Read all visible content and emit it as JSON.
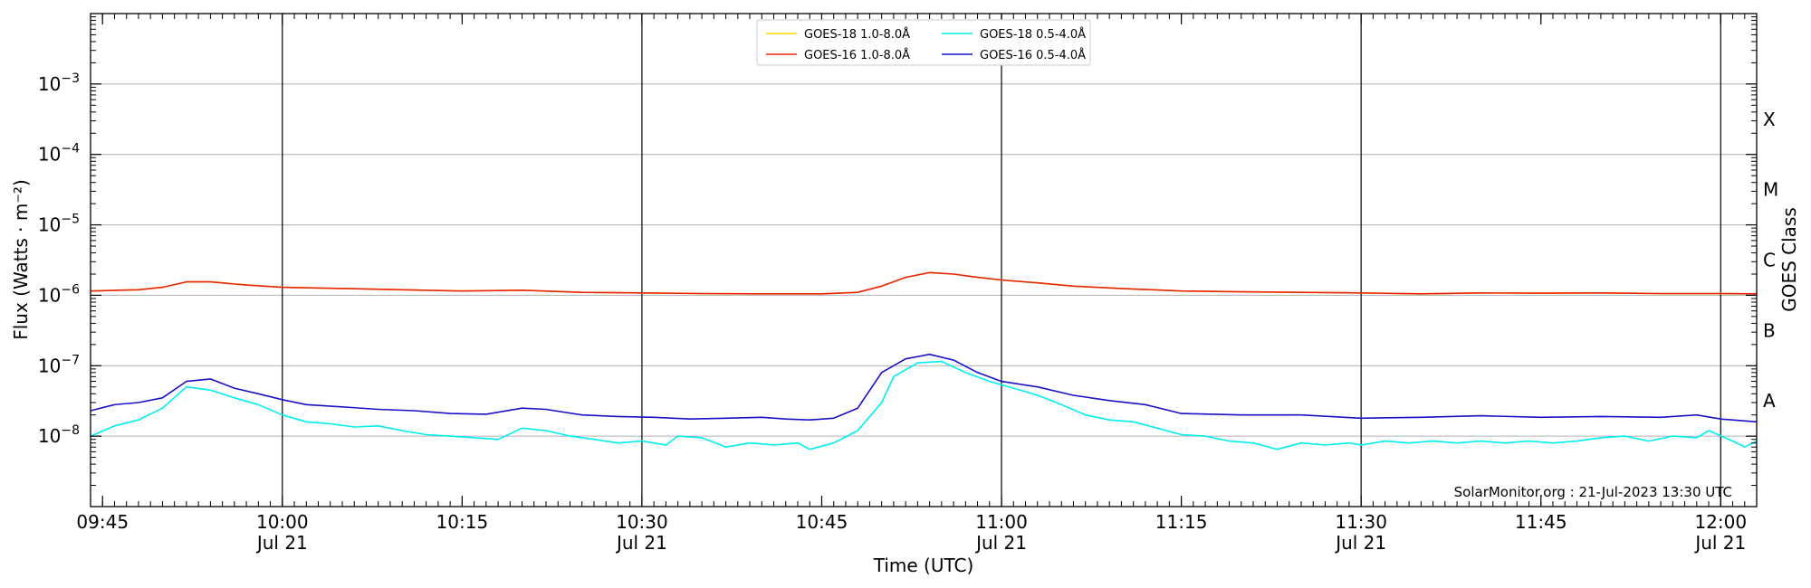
{
  "chart_data": {
    "type": "line",
    "title": "",
    "xlabel": "Time (UTC)",
    "ylabel": "Flux (Watts · m⁻²)",
    "y_scale": "log",
    "ylim": [
      1e-09,
      0.01
    ],
    "xlim": [
      "2023-07-21T09:44",
      "2023-07-21T12:03"
    ],
    "y_ticks": [
      {
        "value": 1e-08,
        "base": "10",
        "exp": "−8"
      },
      {
        "value": 1e-07,
        "base": "10",
        "exp": "−7"
      },
      {
        "value": 1e-06,
        "base": "10",
        "exp": "−6"
      },
      {
        "value": 1e-05,
        "base": "10",
        "exp": "−5"
      },
      {
        "value": 0.0001,
        "base": "10",
        "exp": "−4"
      },
      {
        "value": 0.001,
        "base": "10",
        "exp": "−3"
      }
    ],
    "x_ticks": [
      {
        "time": "2023-07-21T09:45",
        "label": "09:45",
        "sub": ""
      },
      {
        "time": "2023-07-21T10:00",
        "label": "10:00",
        "sub": "Jul 21"
      },
      {
        "time": "2023-07-21T10:15",
        "label": "10:15",
        "sub": ""
      },
      {
        "time": "2023-07-21T10:30",
        "label": "10:30",
        "sub": "Jul 21"
      },
      {
        "time": "2023-07-21T10:45",
        "label": "10:45",
        "sub": ""
      },
      {
        "time": "2023-07-21T11:00",
        "label": "11:00",
        "sub": "Jul 21"
      },
      {
        "time": "2023-07-21T11:15",
        "label": "11:15",
        "sub": ""
      },
      {
        "time": "2023-07-21T11:30",
        "label": "11:30",
        "sub": "Jul 21"
      },
      {
        "time": "2023-07-21T11:45",
        "label": "11:45",
        "sub": ""
      },
      {
        "time": "2023-07-21T12:00",
        "label": "12:00",
        "sub": "Jul 21"
      }
    ],
    "vlines": [
      "2023-07-21T10:00",
      "2023-07-21T10:30",
      "2023-07-21T11:00",
      "2023-07-21T11:30",
      "2023-07-21T12:00"
    ],
    "grid": "horizontal",
    "right_axis": {
      "label": "GOES Class",
      "classes": [
        {
          "name": "A",
          "value": 1e-08
        },
        {
          "name": "B",
          "value": 1e-07
        },
        {
          "name": "C",
          "value": 1e-06
        },
        {
          "name": "M",
          "value": 1e-05
        },
        {
          "name": "X",
          "value": 0.0001
        }
      ]
    },
    "legend": {
      "placement": "top-center",
      "entries": [
        {
          "name": "GOES-18 1.0-8.0Å",
          "color": "#ffd700"
        },
        {
          "name": "GOES-16 1.0-8.0Å",
          "color": "#e8250c"
        },
        {
          "name": "GOES-18 0.5-4.0Å",
          "color": "#00eeee"
        },
        {
          "name": "GOES-16 0.5-4.0Å",
          "color": "#1a10c8"
        }
      ]
    },
    "annotation": "SolarMonitor.org : 21-Jul-2023 13:30 UTC",
    "series": [
      {
        "name": "GOES-18 1.0-8.0Å",
        "color": "#ffd700",
        "points": [
          [
            "2023-07-21T09:44",
            1.15e-06
          ],
          [
            "2023-07-21T09:48",
            1.2e-06
          ],
          [
            "2023-07-21T09:50",
            1.3e-06
          ],
          [
            "2023-07-21T09:52",
            1.55e-06
          ],
          [
            "2023-07-21T09:54",
            1.55e-06
          ],
          [
            "2023-07-21T09:57",
            1.4e-06
          ],
          [
            "2023-07-21T10:00",
            1.3e-06
          ],
          [
            "2023-07-21T10:05",
            1.25e-06
          ],
          [
            "2023-07-21T10:10",
            1.2e-06
          ],
          [
            "2023-07-21T10:15",
            1.15e-06
          ],
          [
            "2023-07-21T10:20",
            1.18e-06
          ],
          [
            "2023-07-21T10:25",
            1.1e-06
          ],
          [
            "2023-07-21T10:30",
            1.08e-06
          ],
          [
            "2023-07-21T10:35",
            1.06e-06
          ],
          [
            "2023-07-21T10:40",
            1.05e-06
          ],
          [
            "2023-07-21T10:45",
            1.05e-06
          ],
          [
            "2023-07-21T10:48",
            1.1e-06
          ],
          [
            "2023-07-21T10:50",
            1.35e-06
          ],
          [
            "2023-07-21T10:52",
            1.8e-06
          ],
          [
            "2023-07-21T10:54",
            2.1e-06
          ],
          [
            "2023-07-21T10:56",
            2e-06
          ],
          [
            "2023-07-21T10:58",
            1.8e-06
          ],
          [
            "2023-07-21T11:00",
            1.65e-06
          ],
          [
            "2023-07-21T11:03",
            1.5e-06
          ],
          [
            "2023-07-21T11:06",
            1.35e-06
          ],
          [
            "2023-07-21T11:10",
            1.25e-06
          ],
          [
            "2023-07-21T11:15",
            1.15e-06
          ],
          [
            "2023-07-21T11:20",
            1.12e-06
          ],
          [
            "2023-07-21T11:25",
            1.1e-06
          ],
          [
            "2023-07-21T11:30",
            1.08e-06
          ],
          [
            "2023-07-21T11:35",
            1.05e-06
          ],
          [
            "2023-07-21T11:40",
            1.08e-06
          ],
          [
            "2023-07-21T11:45",
            1.07e-06
          ],
          [
            "2023-07-21T11:50",
            1.08e-06
          ],
          [
            "2023-07-21T11:55",
            1.06e-06
          ],
          [
            "2023-07-21T12:00",
            1.06e-06
          ],
          [
            "2023-07-21T12:03",
            1.05e-06
          ]
        ]
      },
      {
        "name": "GOES-16 1.0-8.0Å",
        "color": "#e8250c",
        "points": [
          [
            "2023-07-21T09:44",
            1.15e-06
          ],
          [
            "2023-07-21T09:48",
            1.2e-06
          ],
          [
            "2023-07-21T09:50",
            1.3e-06
          ],
          [
            "2023-07-21T09:52",
            1.55e-06
          ],
          [
            "2023-07-21T09:54",
            1.55e-06
          ],
          [
            "2023-07-21T09:57",
            1.4e-06
          ],
          [
            "2023-07-21T10:00",
            1.3e-06
          ],
          [
            "2023-07-21T10:05",
            1.25e-06
          ],
          [
            "2023-07-21T10:10",
            1.2e-06
          ],
          [
            "2023-07-21T10:15",
            1.15e-06
          ],
          [
            "2023-07-21T10:20",
            1.18e-06
          ],
          [
            "2023-07-21T10:25",
            1.1e-06
          ],
          [
            "2023-07-21T10:30",
            1.08e-06
          ],
          [
            "2023-07-21T10:35",
            1.06e-06
          ],
          [
            "2023-07-21T10:40",
            1.05e-06
          ],
          [
            "2023-07-21T10:45",
            1.05e-06
          ],
          [
            "2023-07-21T10:48",
            1.1e-06
          ],
          [
            "2023-07-21T10:50",
            1.35e-06
          ],
          [
            "2023-07-21T10:52",
            1.8e-06
          ],
          [
            "2023-07-21T10:54",
            2.1e-06
          ],
          [
            "2023-07-21T10:56",
            2e-06
          ],
          [
            "2023-07-21T10:58",
            1.8e-06
          ],
          [
            "2023-07-21T11:00",
            1.65e-06
          ],
          [
            "2023-07-21T11:03",
            1.5e-06
          ],
          [
            "2023-07-21T11:06",
            1.35e-06
          ],
          [
            "2023-07-21T11:10",
            1.25e-06
          ],
          [
            "2023-07-21T11:15",
            1.15e-06
          ],
          [
            "2023-07-21T11:20",
            1.12e-06
          ],
          [
            "2023-07-21T11:25",
            1.1e-06
          ],
          [
            "2023-07-21T11:30",
            1.08e-06
          ],
          [
            "2023-07-21T11:35",
            1.05e-06
          ],
          [
            "2023-07-21T11:40",
            1.08e-06
          ],
          [
            "2023-07-21T11:45",
            1.07e-06
          ],
          [
            "2023-07-21T11:50",
            1.08e-06
          ],
          [
            "2023-07-21T11:55",
            1.06e-06
          ],
          [
            "2023-07-21T12:00",
            1.06e-06
          ],
          [
            "2023-07-21T12:03",
            1.05e-06
          ]
        ]
      },
      {
        "name": "GOES-18 0.5-4.0Å",
        "color": "#00eeee",
        "points": [
          [
            "2023-07-21T09:44",
            1e-08
          ],
          [
            "2023-07-21T09:46",
            1.4e-08
          ],
          [
            "2023-07-21T09:48",
            1.7e-08
          ],
          [
            "2023-07-21T09:50",
            2.5e-08
          ],
          [
            "2023-07-21T09:52",
            5e-08
          ],
          [
            "2023-07-21T09:54",
            4.5e-08
          ],
          [
            "2023-07-21T09:56",
            3.5e-08
          ],
          [
            "2023-07-21T09:58",
            2.8e-08
          ],
          [
            "2023-07-21T10:00",
            2e-08
          ],
          [
            "2023-07-21T10:02",
            1.6e-08
          ],
          [
            "2023-07-21T10:04",
            1.5e-08
          ],
          [
            "2023-07-21T10:06",
            1.35e-08
          ],
          [
            "2023-07-21T10:08",
            1.4e-08
          ],
          [
            "2023-07-21T10:10",
            1.2e-08
          ],
          [
            "2023-07-21T10:12",
            1.05e-08
          ],
          [
            "2023-07-21T10:14",
            1e-08
          ],
          [
            "2023-07-21T10:16",
            9.5e-09
          ],
          [
            "2023-07-21T10:18",
            9e-09
          ],
          [
            "2023-07-21T10:20",
            1.3e-08
          ],
          [
            "2023-07-21T10:22",
            1.2e-08
          ],
          [
            "2023-07-21T10:24",
            1e-08
          ],
          [
            "2023-07-21T10:26",
            9e-09
          ],
          [
            "2023-07-21T10:28",
            8e-09
          ],
          [
            "2023-07-21T10:30",
            8.5e-09
          ],
          [
            "2023-07-21T10:32",
            7.5e-09
          ],
          [
            "2023-07-21T10:33",
            1e-08
          ],
          [
            "2023-07-21T10:35",
            9.5e-09
          ],
          [
            "2023-07-21T10:37",
            7e-09
          ],
          [
            "2023-07-21T10:39",
            8e-09
          ],
          [
            "2023-07-21T10:41",
            7.5e-09
          ],
          [
            "2023-07-21T10:43",
            8e-09
          ],
          [
            "2023-07-21T10:44",
            6.5e-09
          ],
          [
            "2023-07-21T10:46",
            8e-09
          ],
          [
            "2023-07-21T10:48",
            1.2e-08
          ],
          [
            "2023-07-21T10:50",
            3e-08
          ],
          [
            "2023-07-21T10:51",
            7e-08
          ],
          [
            "2023-07-21T10:53",
            1.1e-07
          ],
          [
            "2023-07-21T10:55",
            1.15e-07
          ],
          [
            "2023-07-21T10:57",
            8e-08
          ],
          [
            "2023-07-21T10:59",
            6e-08
          ],
          [
            "2023-07-21T11:01",
            4.8e-08
          ],
          [
            "2023-07-21T11:03",
            3.8e-08
          ],
          [
            "2023-07-21T11:05",
            2.8e-08
          ],
          [
            "2023-07-21T11:07",
            2e-08
          ],
          [
            "2023-07-21T11:09",
            1.7e-08
          ],
          [
            "2023-07-21T11:11",
            1.6e-08
          ],
          [
            "2023-07-21T11:13",
            1.3e-08
          ],
          [
            "2023-07-21T11:15",
            1.05e-08
          ],
          [
            "2023-07-21T11:17",
            1e-08
          ],
          [
            "2023-07-21T11:19",
            8.5e-09
          ],
          [
            "2023-07-21T11:21",
            8e-09
          ],
          [
            "2023-07-21T11:23",
            6.5e-09
          ],
          [
            "2023-07-21T11:25",
            8e-09
          ],
          [
            "2023-07-21T11:27",
            7.5e-09
          ],
          [
            "2023-07-21T11:29",
            8e-09
          ],
          [
            "2023-07-21T11:30",
            7.5e-09
          ],
          [
            "2023-07-21T11:32",
            8.5e-09
          ],
          [
            "2023-07-21T11:34",
            8e-09
          ],
          [
            "2023-07-21T11:36",
            8.5e-09
          ],
          [
            "2023-07-21T11:38",
            8e-09
          ],
          [
            "2023-07-21T11:40",
            8.5e-09
          ],
          [
            "2023-07-21T11:42",
            8e-09
          ],
          [
            "2023-07-21T11:44",
            8.5e-09
          ],
          [
            "2023-07-21T11:46",
            8e-09
          ],
          [
            "2023-07-21T11:48",
            8.5e-09
          ],
          [
            "2023-07-21T11:50",
            9.5e-09
          ],
          [
            "2023-07-21T11:52",
            1e-08
          ],
          [
            "2023-07-21T11:54",
            8.5e-09
          ],
          [
            "2023-07-21T11:56",
            1e-08
          ],
          [
            "2023-07-21T11:58",
            9.5e-09
          ],
          [
            "2023-07-21T11:59",
            1.2e-08
          ],
          [
            "2023-07-21T12:01",
            8.5e-09
          ],
          [
            "2023-07-21T12:02",
            7e-09
          ],
          [
            "2023-07-21T12:03",
            8.5e-09
          ]
        ]
      },
      {
        "name": "GOES-16 0.5-4.0Å",
        "color": "#1a10c8",
        "points": [
          [
            "2023-07-21T09:44",
            2.3e-08
          ],
          [
            "2023-07-21T09:46",
            2.8e-08
          ],
          [
            "2023-07-21T09:48",
            3e-08
          ],
          [
            "2023-07-21T09:50",
            3.5e-08
          ],
          [
            "2023-07-21T09:52",
            6e-08
          ],
          [
            "2023-07-21T09:54",
            6.5e-08
          ],
          [
            "2023-07-21T09:56",
            4.8e-08
          ],
          [
            "2023-07-21T09:58",
            4e-08
          ],
          [
            "2023-07-21T10:00",
            3.3e-08
          ],
          [
            "2023-07-21T10:02",
            2.8e-08
          ],
          [
            "2023-07-21T10:05",
            2.6e-08
          ],
          [
            "2023-07-21T10:08",
            2.4e-08
          ],
          [
            "2023-07-21T10:11",
            2.3e-08
          ],
          [
            "2023-07-21T10:14",
            2.1e-08
          ],
          [
            "2023-07-21T10:17",
            2.05e-08
          ],
          [
            "2023-07-21T10:20",
            2.5e-08
          ],
          [
            "2023-07-21T10:22",
            2.4e-08
          ],
          [
            "2023-07-21T10:25",
            2e-08
          ],
          [
            "2023-07-21T10:28",
            1.9e-08
          ],
          [
            "2023-07-21T10:31",
            1.85e-08
          ],
          [
            "2023-07-21T10:34",
            1.75e-08
          ],
          [
            "2023-07-21T10:37",
            1.8e-08
          ],
          [
            "2023-07-21T10:40",
            1.85e-08
          ],
          [
            "2023-07-21T10:42",
            1.75e-08
          ],
          [
            "2023-07-21T10:44",
            1.7e-08
          ],
          [
            "2023-07-21T10:46",
            1.8e-08
          ],
          [
            "2023-07-21T10:48",
            2.5e-08
          ],
          [
            "2023-07-21T10:50",
            8e-08
          ],
          [
            "2023-07-21T10:52",
            1.25e-07
          ],
          [
            "2023-07-21T10:54",
            1.45e-07
          ],
          [
            "2023-07-21T10:56",
            1.2e-07
          ],
          [
            "2023-07-21T10:58",
            8e-08
          ],
          [
            "2023-07-21T11:00",
            6e-08
          ],
          [
            "2023-07-21T11:03",
            5e-08
          ],
          [
            "2023-07-21T11:06",
            3.8e-08
          ],
          [
            "2023-07-21T11:09",
            3.2e-08
          ],
          [
            "2023-07-21T11:12",
            2.8e-08
          ],
          [
            "2023-07-21T11:15",
            2.1e-08
          ],
          [
            "2023-07-21T11:20",
            2e-08
          ],
          [
            "2023-07-21T11:25",
            2e-08
          ],
          [
            "2023-07-21T11:30",
            1.8e-08
          ],
          [
            "2023-07-21T11:35",
            1.85e-08
          ],
          [
            "2023-07-21T11:40",
            1.95e-08
          ],
          [
            "2023-07-21T11:45",
            1.85e-08
          ],
          [
            "2023-07-21T11:50",
            1.9e-08
          ],
          [
            "2023-07-21T11:55",
            1.85e-08
          ],
          [
            "2023-07-21T11:58",
            2e-08
          ],
          [
            "2023-07-21T12:00",
            1.75e-08
          ],
          [
            "2023-07-21T12:03",
            1.6e-08
          ]
        ]
      }
    ]
  }
}
